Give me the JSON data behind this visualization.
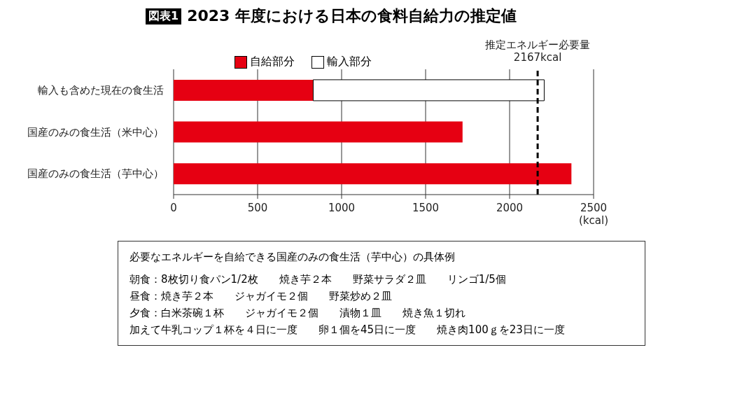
{
  "chart_data": {
    "type": "bar",
    "orientation": "horizontal",
    "stacked": true,
    "title": "2023 年度における日本の食料自給力の推定値",
    "categories": [
      "輸入も含めた現在の食生活",
      "国産のみの食生活（米中心）",
      "国産のみの食生活（芋中心）"
    ],
    "series": [
      {
        "name": "自給部分",
        "color": "#e60012",
        "values": [
          831,
          1720,
          2368
        ]
      },
      {
        "name": "輸入部分",
        "color": "#ffffff",
        "values": [
          1375,
          null,
          null
        ]
      }
    ],
    "xlim": [
      0,
      2500
    ],
    "xticks": [
      0,
      500,
      1000,
      1500,
      2000,
      {
        "value": 2500,
        "label": "2500\n(kcal)"
      }
    ],
    "grid": "x",
    "legend": "top",
    "ref_lines": [
      {
        "axis": "x",
        "value": 2167,
        "label": "推定エネルギー必要量\n2167kcal",
        "color": "#000000",
        "line_style": "dashed"
      }
    ],
    "annotations": [
      "図表1",
      "必要なエネルギーを自給できる国産のみの食生活（芋中心）の具体例",
      "朝食：8枚切り食パン1/2枚　　焼き芋２本　　野菜サラダ２皿　　リンゴ1/5個",
      "昼食：焼き芋２本　　ジャガイモ２個　　野菜炒め２皿",
      "夕食：白米茶碗１杯　　ジャガイモ２個　　漬物１皿　　焼き魚１切れ",
      "加えて牛乳コップ１杯を４日に一度　　卵１個を45日に一度　　焼き肉100ｇを23日に一度"
    ]
  }
}
